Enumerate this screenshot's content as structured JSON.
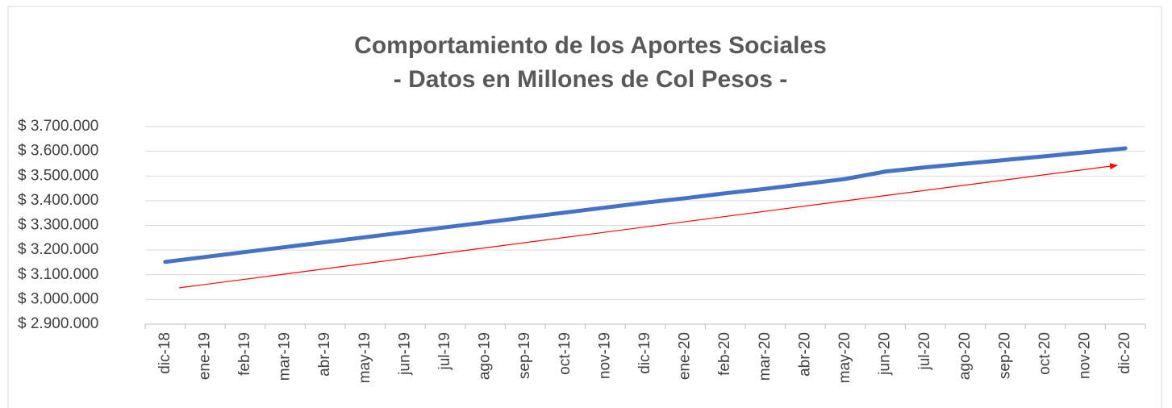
{
  "chart_data": {
    "type": "line",
    "title": "Comportamiento de los Aportes Sociales",
    "subtitle": "- Datos en Millones de Col Pesos -",
    "categories": [
      "dic-18",
      "ene-19",
      "feb-19",
      "mar-19",
      "abr-19",
      "may-19",
      "jun-19",
      "jul-19",
      "ago-19",
      "sep-19",
      "oct-19",
      "nov-19",
      "dic-19",
      "ene-20",
      "feb-20",
      "mar-20",
      "abr-20",
      "may-20",
      "jun-20",
      "jul-20",
      "ago-20",
      "sep-20",
      "oct-20",
      "nov-20",
      "dic-20"
    ],
    "series": [
      {
        "name": "Aportes Sociales",
        "color": "#4472c4",
        "values": [
          3152000,
          3172000,
          3192000,
          3212000,
          3232000,
          3252000,
          3272000,
          3292000,
          3312000,
          3332000,
          3352000,
          3372000,
          3392000,
          3410000,
          3430000,
          3448000,
          3468000,
          3488000,
          3518000,
          3535000,
          3550000,
          3565000,
          3580000,
          3596000,
          3612000
        ]
      }
    ],
    "ylim": [
      2900000,
      3700000
    ],
    "yticks": [
      {
        "value": 2900000,
        "label": "$ 2.900.000"
      },
      {
        "value": 3000000,
        "label": "$ 3.000.000"
      },
      {
        "value": 3100000,
        "label": "$ 3.100.000"
      },
      {
        "value": 3200000,
        "label": "$ 3.200.000"
      },
      {
        "value": 3300000,
        "label": "$ 3.300.000"
      },
      {
        "value": 3400000,
        "label": "$ 3.400.000"
      },
      {
        "value": 3500000,
        "label": "$ 3.500.000"
      },
      {
        "value": 3600000,
        "label": "$ 3.600.000"
      },
      {
        "value": 3700000,
        "label": "$ 3.700.000"
      }
    ],
    "grid": true
  }
}
